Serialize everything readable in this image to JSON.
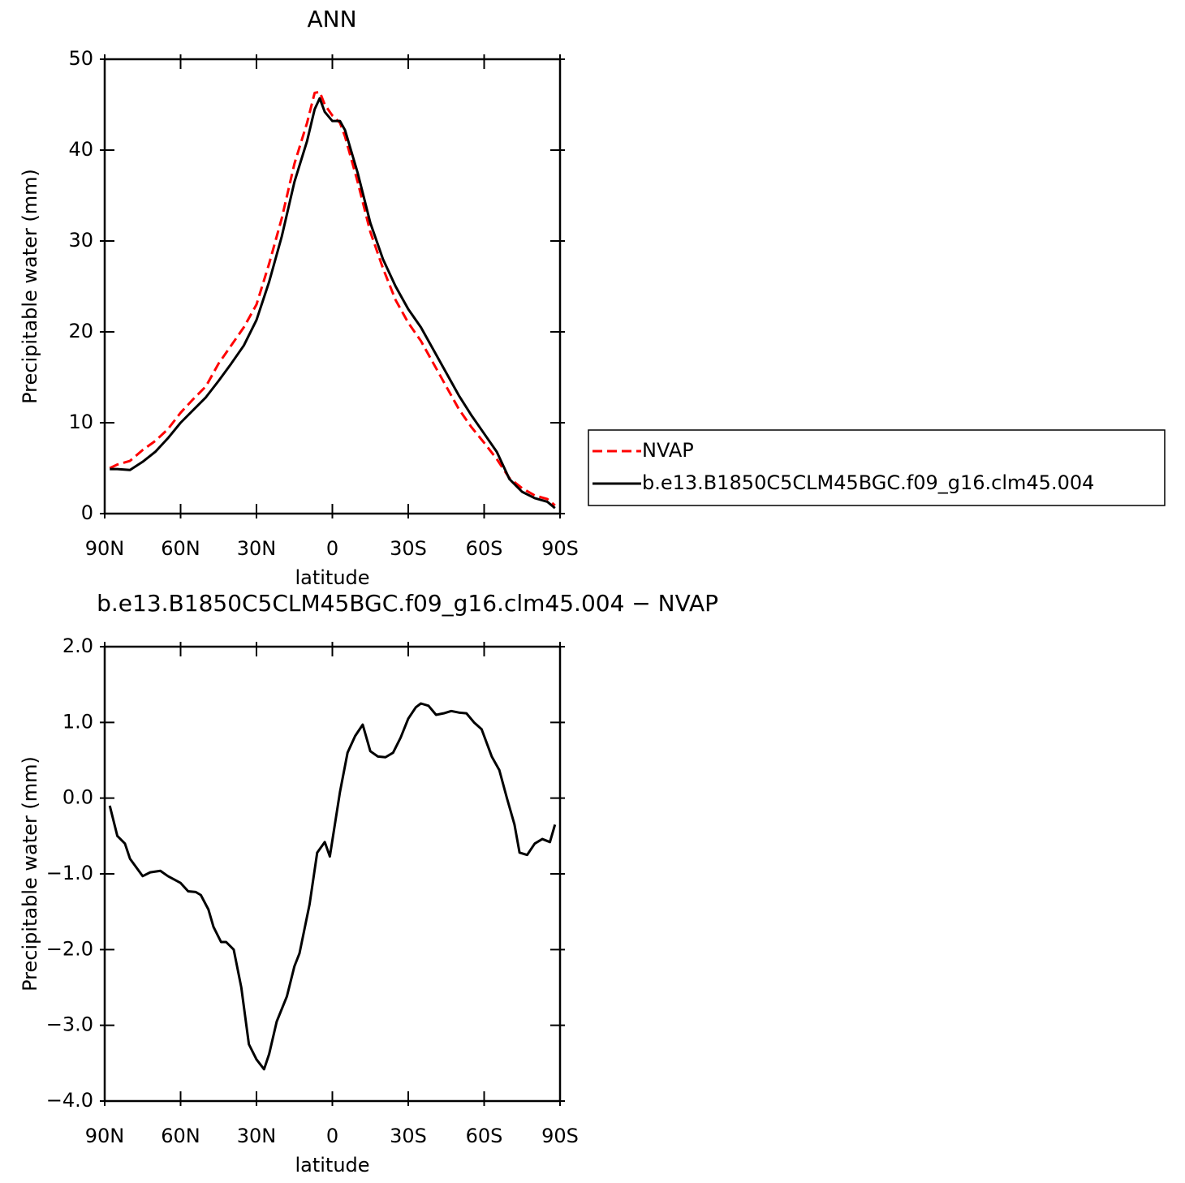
{
  "chart_data": [
    {
      "type": "line",
      "title": "ANN",
      "xlabel": "latitude",
      "ylabel": "Precipitable water (mm)",
      "x": [
        88,
        85,
        80,
        75,
        70,
        65,
        60,
        55,
        50,
        45,
        40,
        35,
        30,
        25,
        20,
        15,
        10,
        7,
        5,
        3,
        0,
        -3,
        -5,
        -10,
        -15,
        -20,
        -25,
        -30,
        -35,
        -40,
        -45,
        -50,
        -55,
        -60,
        -65,
        -70,
        -75,
        -80,
        -85,
        -88
      ],
      "series": [
        {
          "name": "NVAP",
          "color": "#ff0000",
          "linestyle": "dashed",
          "values": [
            5.0,
            5.4,
            5.8,
            7.0,
            8.0,
            9.3,
            11.1,
            12.6,
            14.0,
            16.5,
            18.5,
            20.5,
            23.0,
            27.5,
            32.5,
            38.5,
            43,
            46.3,
            46.4,
            45,
            43.8,
            43.0,
            41.5,
            36.5,
            31,
            27,
            23.5,
            21,
            19,
            16.5,
            14,
            11.5,
            9.5,
            7.8,
            6.0,
            3.9,
            2.8,
            2.0,
            1.6,
            0.9
          ]
        },
        {
          "name": "b.e13.B1850C5CLM45BGC.f09_g16.clm45.004",
          "color": "#000000",
          "linestyle": "solid",
          "values": [
            4.9,
            4.9,
            4.8,
            5.7,
            6.8,
            8.3,
            10.0,
            11.4,
            12.8,
            14.6,
            16.5,
            18.5,
            21.3,
            25.5,
            30.5,
            36.5,
            41,
            44.5,
            45.7,
            44.2,
            43.2,
            43.2,
            42.2,
            37.5,
            32,
            28,
            25,
            22.5,
            20.5,
            18,
            15.5,
            13,
            10.8,
            8.8,
            6.8,
            3.8,
            2.4,
            1.7,
            1.3,
            0.6
          ]
        }
      ],
      "xlim": [
        90,
        -90
      ],
      "xticks": [
        {
          "value": 90,
          "label": "90N"
        },
        {
          "value": 60,
          "label": "60N"
        },
        {
          "value": 30,
          "label": "30N"
        },
        0,
        {
          "value": -30,
          "label": "30S"
        },
        {
          "value": -60,
          "label": "60S"
        },
        {
          "value": -90,
          "label": "90S"
        }
      ],
      "ylim": [
        0,
        50
      ],
      "yticks": [
        0,
        10,
        20,
        30,
        40,
        50
      ],
      "legend": "right"
    },
    {
      "type": "line",
      "title": "b.e13.B1850C5CLM45BGC.f09_g16.clm45.004 − NVAP",
      "xlabel": "latitude",
      "ylabel": "Precipitable water (mm)",
      "x": [
        88,
        85,
        82,
        80,
        75,
        72,
        68,
        65,
        60,
        57,
        54,
        52,
        49,
        47,
        44,
        42,
        39,
        36,
        33,
        30,
        27,
        25,
        22,
        18,
        15,
        13,
        9,
        6,
        3,
        1,
        -3,
        -6,
        -9,
        -12,
        -15,
        -18,
        -21,
        -24,
        -27,
        -30,
        -33,
        -35,
        -38,
        -41,
        -44,
        -47,
        -50,
        -53,
        -56,
        -59,
        -63,
        -66,
        -69,
        -72,
        -74,
        -77,
        -80,
        -83,
        -86,
        -88
      ],
      "values": [
        -0.1,
        -0.5,
        -0.6,
        -0.8,
        -1.03,
        -0.98,
        -0.96,
        -1.03,
        -1.12,
        -1.23,
        -1.24,
        -1.28,
        -1.47,
        -1.7,
        -1.9,
        -1.9,
        -2.0,
        -2.5,
        -3.25,
        -3.45,
        -3.58,
        -3.38,
        -2.95,
        -2.62,
        -2.22,
        -2.05,
        -1.4,
        -0.72,
        -0.58,
        -0.77,
        0.08,
        0.6,
        0.82,
        0.97,
        0.62,
        0.55,
        0.54,
        0.6,
        0.8,
        1.05,
        1.2,
        1.25,
        1.22,
        1.1,
        1.12,
        1.15,
        1.13,
        1.12,
        1.0,
        0.91,
        0.55,
        0.37,
        0.0,
        -0.35,
        -0.72,
        -0.75,
        -0.6,
        -0.54,
        -0.58,
        -0.35
      ],
      "color": "#000000",
      "xlim": [
        90,
        -90
      ],
      "xticks": [
        {
          "value": 90,
          "label": "90N"
        },
        {
          "value": 60,
          "label": "60N"
        },
        {
          "value": 30,
          "label": "30N"
        },
        0,
        {
          "value": -30,
          "label": "30S"
        },
        {
          "value": -60,
          "label": "60S"
        },
        {
          "value": -90,
          "label": "90S"
        }
      ],
      "ylim": [
        -4,
        2
      ],
      "yticks": [
        {
          "value": -4,
          "label": "−4.0"
        },
        {
          "value": -3,
          "label": "−3.0"
        },
        {
          "value": -2,
          "label": "−2.0"
        },
        {
          "value": -1,
          "label": "−1.0"
        },
        {
          "value": 0,
          "label": "0.0"
        },
        {
          "value": 1,
          "label": "1.0"
        },
        {
          "value": 2,
          "label": "2.0"
        }
      ]
    }
  ]
}
